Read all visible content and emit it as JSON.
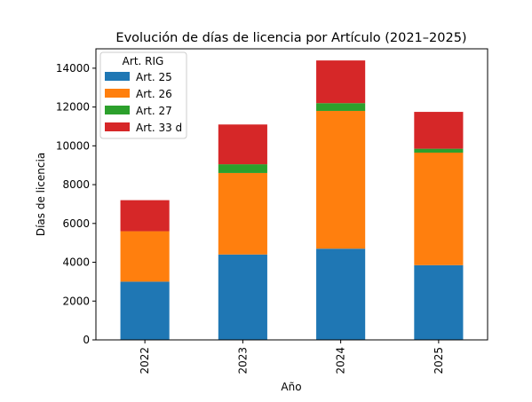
{
  "chart_data": {
    "type": "bar",
    "stacked": true,
    "title": "Evolución de días de licencia por Artículo (2021–2025)",
    "xlabel": "Año",
    "ylabel": "Días de licencia",
    "categories": [
      "2022",
      "2023",
      "2024",
      "2025"
    ],
    "ylim": [
      0,
      15000
    ],
    "yticks": [
      0,
      2000,
      4000,
      6000,
      8000,
      10000,
      12000,
      14000
    ],
    "grid": false,
    "legend": {
      "title": "Art. RIG",
      "position": "top-left"
    },
    "series": [
      {
        "name": "Art. 25",
        "color": "#1f77b4",
        "values": [
          3000,
          4400,
          4700,
          3850
        ]
      },
      {
        "name": "Art. 26",
        "color": "#ff7f0e",
        "values": [
          2600,
          4200,
          7100,
          5800
        ]
      },
      {
        "name": "Art. 27",
        "color": "#2ca02c",
        "values": [
          0,
          450,
          400,
          200
        ]
      },
      {
        "name": "Art. 33 d",
        "color": "#d62728",
        "values": [
          1600,
          2050,
          2200,
          1900
        ]
      }
    ]
  }
}
